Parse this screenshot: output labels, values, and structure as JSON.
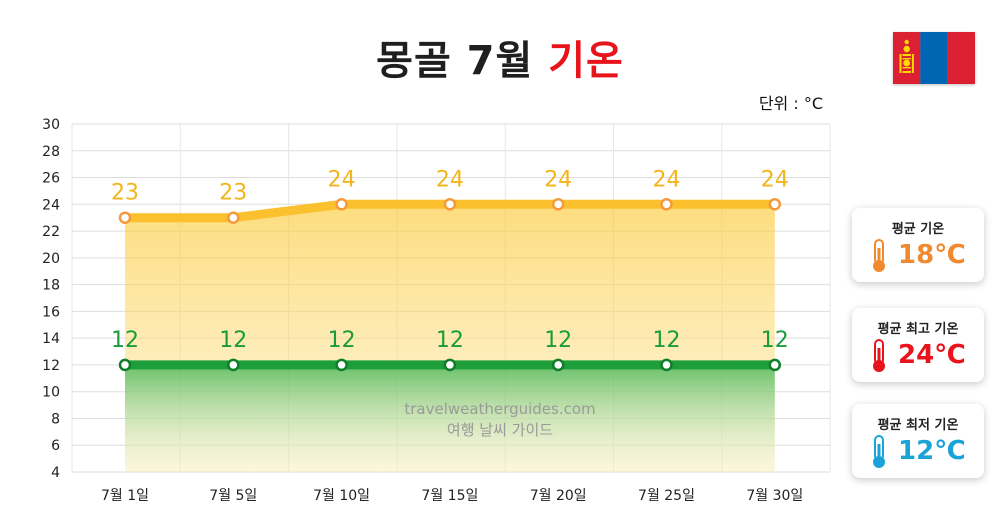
{
  "page": {
    "title_main": "몽골 7월",
    "title_accent": "기온",
    "unit": "단위 : °C",
    "watermark_url": "travelweatherguides.com",
    "watermark_text": "여행 날씨 가이드"
  },
  "flag": {
    "icon": "mongolia-flag-icon",
    "colors": [
      "#da2032",
      "#0066b3",
      "#da2032"
    ],
    "emblem_color": "#ffd900"
  },
  "cards": [
    {
      "label": "평균 기온",
      "value": "18℃",
      "color": "#f08a30",
      "icon": "thermometer-icon"
    },
    {
      "label": "평균 최고 기온",
      "value": "24℃",
      "color": "#e8141b",
      "icon": "thermometer-icon"
    },
    {
      "label": "평균 최저 기온",
      "value": "12℃",
      "color": "#1aa3d9",
      "icon": "thermometer-icon"
    }
  ],
  "chart_data": {
    "type": "area",
    "categories": [
      "7월 1일",
      "7월 5일",
      "7월 10일",
      "7월 15일",
      "7월 20일",
      "7월 25일",
      "7월 30일"
    ],
    "series": [
      {
        "values": [
          23,
          23,
          24,
          24,
          24,
          24,
          24
        ],
        "color": "#fbc02d",
        "label_color": "#f2b51e"
      },
      {
        "values": [
          12,
          12,
          12,
          12,
          12,
          12,
          12
        ],
        "color": "#1e9e3a",
        "label_color": "#1a9b3c"
      }
    ],
    "ylim": [
      4,
      30
    ],
    "yticks": [
      4,
      6,
      8,
      10,
      12,
      14,
      16,
      18,
      20,
      22,
      24,
      26,
      28,
      30
    ],
    "grid": true,
    "title": "",
    "xlabel": "",
    "ylabel": ""
  }
}
